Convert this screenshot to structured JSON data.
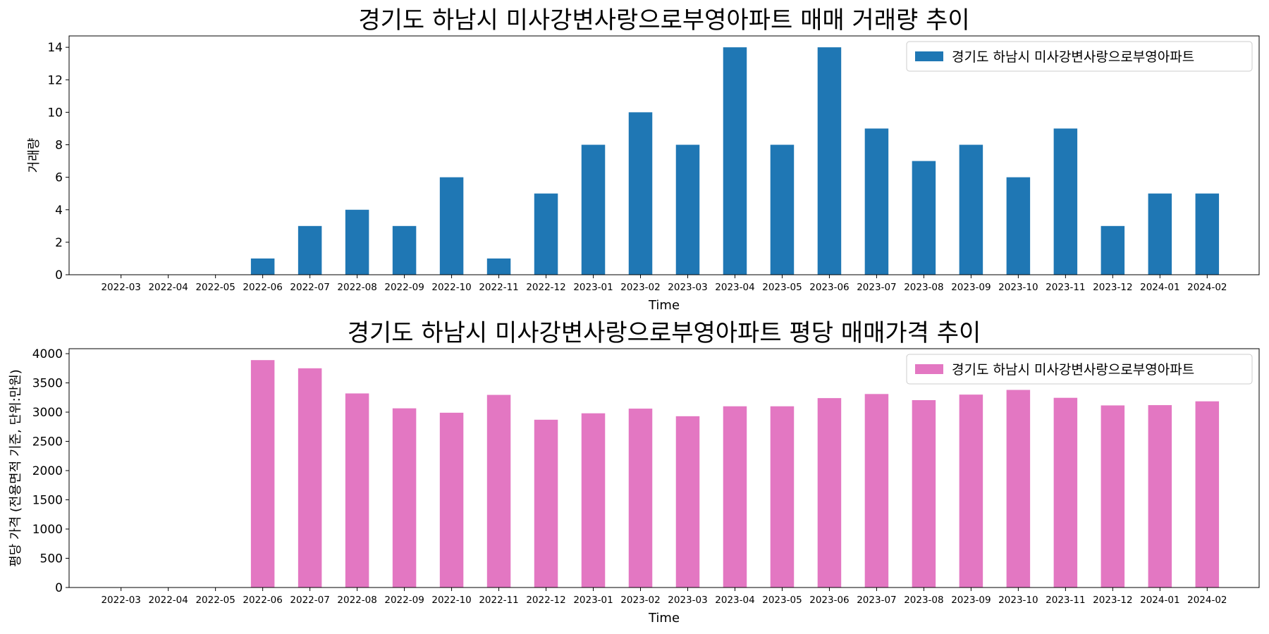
{
  "chart_data": [
    {
      "type": "bar",
      "title": "경기도 하남시 미사강변사랑으로부영아파트 매매 거래량 추이",
      "xlabel": "Time",
      "ylabel": "거래량",
      "ylim": [
        0,
        14.7
      ],
      "yticks": [
        0,
        2,
        4,
        6,
        8,
        10,
        12,
        14
      ],
      "grid": false,
      "legend_position": "top-right",
      "categories": [
        "2022-03",
        "2022-04",
        "2022-05",
        "2022-06",
        "2022-07",
        "2022-08",
        "2022-09",
        "2022-10",
        "2022-11",
        "2022-12",
        "2023-01",
        "2023-02",
        "2023-03",
        "2023-04",
        "2023-05",
        "2023-06",
        "2023-07",
        "2023-08",
        "2023-09",
        "2023-10",
        "2023-11",
        "2023-12",
        "2024-01",
        "2024-02"
      ],
      "series": [
        {
          "name": "경기도 하남시 미사강변사랑으로부영아파트",
          "color": "#1f77b4",
          "values": [
            0,
            0,
            0,
            1,
            3,
            4,
            3,
            6,
            1,
            5,
            8,
            10,
            8,
            14,
            8,
            14,
            9,
            7,
            8,
            6,
            9,
            3,
            5,
            5
          ]
        }
      ]
    },
    {
      "type": "bar",
      "title": "경기도 하남시 미사강변사랑으로부영아파트 평당 매매가격 추이",
      "xlabel": "Time",
      "ylabel": "평당 가격 (전용면적 기준, 단위:만원)",
      "ylim": [
        0,
        4085
      ],
      "yticks": [
        0,
        500,
        1000,
        1500,
        2000,
        2500,
        3000,
        3500,
        4000
      ],
      "grid": false,
      "legend_position": "top-right",
      "categories": [
        "2022-03",
        "2022-04",
        "2022-05",
        "2022-06",
        "2022-07",
        "2022-08",
        "2022-09",
        "2022-10",
        "2022-11",
        "2022-12",
        "2023-01",
        "2023-02",
        "2023-03",
        "2023-04",
        "2023-05",
        "2023-06",
        "2023-07",
        "2023-08",
        "2023-09",
        "2023-10",
        "2023-11",
        "2023-12",
        "2024-01",
        "2024-02"
      ],
      "series": [
        {
          "name": "경기도 하남시 미사강변사랑으로부영아파트",
          "color": "#e377c2",
          "values": [
            0,
            0,
            0,
            3890,
            3750,
            3320,
            3065,
            2990,
            3295,
            2870,
            2980,
            3060,
            2930,
            3100,
            3100,
            3240,
            3310,
            3205,
            3300,
            3380,
            3245,
            3115,
            3120,
            3185
          ]
        }
      ]
    }
  ]
}
